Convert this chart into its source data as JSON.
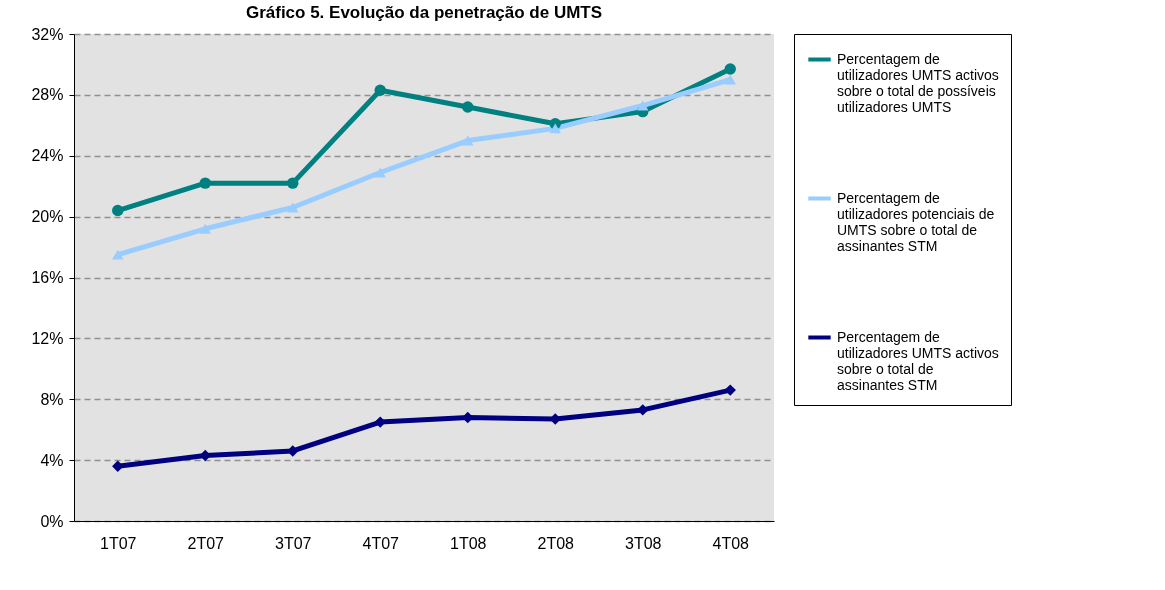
{
  "chart_data": {
    "type": "line",
    "title": "Gráfico 5. Evolução da penetração de UMTS",
    "categories": [
      "1T07",
      "2T07",
      "3T07",
      "4T07",
      "1T08",
      "2T08",
      "3T08",
      "4T08"
    ],
    "series": [
      {
        "name": "Percentagem de utilizadores UMTS activos sobre o total de possíveis utilizadores UMTS",
        "color": "#008080",
        "marker": "circle",
        "values": [
          20.4,
          22.2,
          22.2,
          28.3,
          27.2,
          26.1,
          26.9,
          29.7
        ]
      },
      {
        "name": "Percentagem de utilizadores potenciais de UMTS sobre o total de assinantes STM",
        "color": "#99ccff",
        "marker": "triangle",
        "values": [
          17.5,
          19.2,
          20.6,
          22.9,
          25.0,
          25.8,
          27.3,
          29.0
        ]
      },
      {
        "name": "Percentagem de utilizadores UMTS activos sobre o total de assinantes STM",
        "color": "#000080",
        "marker": "diamond",
        "values": [
          3.6,
          4.3,
          4.6,
          6.5,
          6.8,
          6.7,
          7.3,
          8.6
        ]
      }
    ],
    "ylim": [
      0,
      32
    ],
    "yticks": [
      {
        "value": 0,
        "label": "0%"
      },
      {
        "value": 4,
        "label": "4%"
      },
      {
        "value": 8,
        "label": "8%"
      },
      {
        "value": 12,
        "label": "12%"
      },
      {
        "value": 16,
        "label": "16%"
      },
      {
        "value": 20,
        "label": "20%"
      },
      {
        "value": 24,
        "label": "24%"
      },
      {
        "value": 28,
        "label": "28%"
      },
      {
        "value": 32,
        "label": "32%"
      }
    ],
    "grid": "y",
    "legend": "right",
    "line_style": "solid"
  }
}
